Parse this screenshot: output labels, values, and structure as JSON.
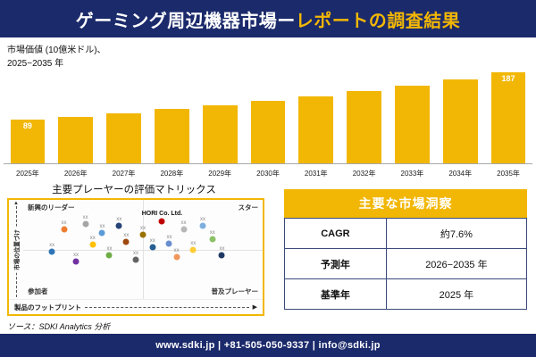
{
  "header": {
    "title_white": "ゲーミング周辺機器市場ー",
    "title_gold": "レポートの調査結果"
  },
  "chart_label": {
    "line1": "市場価値 (10億米ドル)、",
    "line2": "2025−2035 年"
  },
  "chart_data": [
    {
      "type": "bar",
      "title": "市場価値 (10億米ドル)、2025−2035 年",
      "categories": [
        "2025年",
        "2026年",
        "2027年",
        "2028年",
        "2029年",
        "2030年",
        "2031年",
        "2032年",
        "2033年",
        "2034年",
        "2035年"
      ],
      "values": [
        89,
        96,
        103,
        111,
        119,
        128,
        138,
        149,
        160,
        172,
        187
      ],
      "bar_labels": [
        "89",
        "",
        "",
        "",
        "",
        "",
        "",
        "",
        "",
        "",
        "187"
      ],
      "bar_color": "#f2b705",
      "xlabel": "",
      "ylabel": "市場価値 (10億米ドル)",
      "ylim": [
        0,
        200
      ],
      "grid": false,
      "legend": "none"
    },
    {
      "type": "scatter",
      "title": "主要プレーヤーの評価マトリックス",
      "xlabel": "製品のフットプリント",
      "ylabel": "市場の位置づけ",
      "quadrants": {
        "tl": "新興のリーダー",
        "tr": "スター",
        "bl": "参加者",
        "br": "普及プレーヤー"
      },
      "points": [
        {
          "x": 12,
          "y": 52,
          "color": "#2e75b6",
          "label": "xx"
        },
        {
          "x": 17,
          "y": 30,
          "color": "#ed7d31",
          "label": "xx"
        },
        {
          "x": 22,
          "y": 62,
          "color": "#7030a0",
          "label": "xx"
        },
        {
          "x": 26,
          "y": 24,
          "color": "#a5a5a5",
          "label": "xx"
        },
        {
          "x": 29,
          "y": 45,
          "color": "#ffc000",
          "label": "xx"
        },
        {
          "x": 33,
          "y": 33,
          "color": "#5b9bd5",
          "label": "xx"
        },
        {
          "x": 36,
          "y": 56,
          "color": "#70ad47",
          "label": "xx"
        },
        {
          "x": 40,
          "y": 26,
          "color": "#264478",
          "label": "xx"
        },
        {
          "x": 43,
          "y": 42,
          "color": "#9e480e",
          "label": "xx"
        },
        {
          "x": 47,
          "y": 60,
          "color": "#636363",
          "label": "xx"
        },
        {
          "x": 50,
          "y": 35,
          "color": "#997300",
          "label": "xx"
        },
        {
          "x": 54,
          "y": 48,
          "color": "#255e91",
          "label": "xx"
        },
        {
          "x": 58,
          "y": 22,
          "color": "#c00000",
          "label": "HORI Co. Ltd."
        },
        {
          "x": 61,
          "y": 44,
          "color": "#698ed0",
          "label": "xx"
        },
        {
          "x": 64,
          "y": 58,
          "color": "#f1975a",
          "label": "xx"
        },
        {
          "x": 67,
          "y": 30,
          "color": "#b7b7b7",
          "label": "xx"
        },
        {
          "x": 71,
          "y": 50,
          "color": "#ffcd33",
          "label": "xx"
        },
        {
          "x": 75,
          "y": 26,
          "color": "#7cafdd",
          "label": "xx"
        },
        {
          "x": 79,
          "y": 40,
          "color": "#8cc168",
          "label": "xx"
        },
        {
          "x": 83,
          "y": 56,
          "color": "#1f3864",
          "label": "xx"
        }
      ]
    },
    {
      "type": "table",
      "title": "主要な市場洞察",
      "rows": [
        [
          "CAGR",
          "約7.6%"
        ],
        [
          "予測年",
          "2026−2035 年"
        ],
        [
          "基準年",
          "2025 年"
        ]
      ]
    }
  ],
  "source": "ソース：SDKI Analytics 分析",
  "footer": "www.sdki.jp | +81-505-050-9337 | info@sdki.jp",
  "colors": {
    "navy": "#1b2a6b",
    "gold": "#f2b705",
    "bar": "#f2b705"
  }
}
